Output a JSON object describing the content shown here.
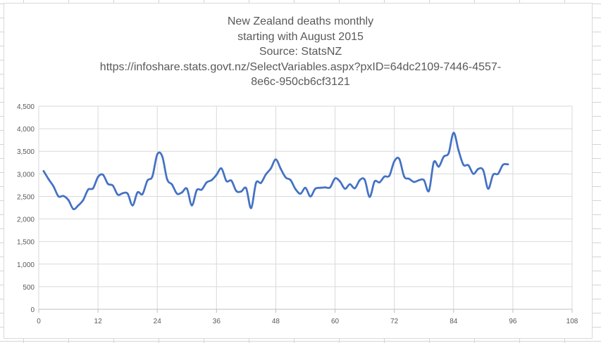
{
  "chart_data": {
    "type": "line",
    "title_lines": [
      "New Zealand deaths monthly",
      "starting with August 2015",
      "Source: StatsNZ",
      "https://infoshare.stats.govt.nz/SelectVariables.aspx?pxID=64dc2109-7446-4557-",
      "8e6c-950cb6cf3121"
    ],
    "xlabel": "",
    "ylabel": "",
    "xlim": [
      0,
      108
    ],
    "ylim": [
      0,
      4500
    ],
    "x_ticks": [
      "0",
      "12",
      "24",
      "36",
      "48",
      "60",
      "72",
      "84",
      "96",
      "108"
    ],
    "y_ticks": [
      "0",
      "500",
      "1,000",
      "1,500",
      "2,000",
      "2,500",
      "3,000",
      "3,500",
      "4,000",
      "4,500"
    ],
    "grid": true,
    "legend": "none",
    "series": [
      {
        "color": "#4472c4",
        "x": [
          1,
          2,
          3,
          4,
          5,
          6,
          7,
          8,
          9,
          10,
          11,
          12,
          13,
          14,
          15,
          16,
          17,
          18,
          19,
          20,
          21,
          22,
          23,
          24,
          25,
          26,
          27,
          28,
          29,
          30,
          31,
          32,
          33,
          34,
          35,
          36,
          37,
          38,
          39,
          40,
          41,
          42,
          43,
          44,
          45,
          46,
          47,
          48,
          49,
          50,
          51,
          52,
          53,
          54,
          55,
          56,
          57,
          58,
          59,
          60,
          61,
          62,
          63,
          64,
          65,
          66,
          67,
          68,
          69,
          70,
          71,
          72,
          73,
          74,
          75,
          76,
          77,
          78,
          79,
          80,
          81,
          82,
          83,
          84,
          85,
          86,
          87,
          88,
          89,
          90,
          91,
          92,
          93,
          94,
          95
        ],
        "y": [
          3060,
          2880,
          2720,
          2500,
          2510,
          2420,
          2220,
          2300,
          2420,
          2650,
          2680,
          2930,
          2980,
          2780,
          2740,
          2540,
          2570,
          2560,
          2300,
          2590,
          2550,
          2850,
          2940,
          3430,
          3390,
          2880,
          2760,
          2560,
          2590,
          2670,
          2300,
          2640,
          2650,
          2810,
          2860,
          2980,
          3120,
          2840,
          2850,
          2620,
          2610,
          2680,
          2240,
          2800,
          2800,
          2990,
          3120,
          3320,
          3110,
          2920,
          2860,
          2660,
          2560,
          2690,
          2500,
          2670,
          2690,
          2700,
          2700,
          2900,
          2830,
          2670,
          2770,
          2680,
          2860,
          2870,
          2490,
          2830,
          2810,
          2940,
          2960,
          3280,
          3330,
          2940,
          2890,
          2820,
          2860,
          2860,
          2620,
          3260,
          3160,
          3380,
          3460,
          3910,
          3520,
          3200,
          3190,
          3000,
          3110,
          3080,
          2670,
          2980,
          3000,
          3200,
          3210
        ]
      }
    ]
  }
}
